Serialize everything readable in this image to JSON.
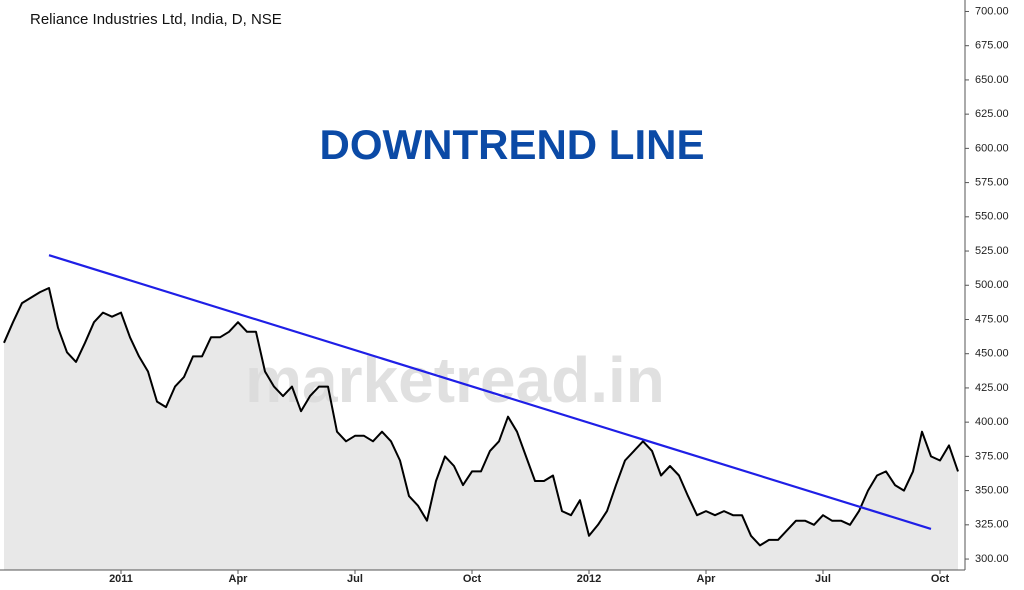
{
  "chart_data": {
    "type": "line",
    "title": "Reliance Industries Ltd, India, D, NSE",
    "annotation": "DOWNTREND LINE",
    "watermark": "marketread.in",
    "categories": [
      null,
      null,
      null,
      null,
      null,
      null,
      null,
      null,
      null,
      null,
      null,
      null,
      null,
      "2011",
      null,
      null,
      null,
      null,
      null,
      null,
      null,
      null,
      null,
      null,
      null,
      null,
      "Apr",
      null,
      null,
      null,
      null,
      null,
      null,
      null,
      null,
      null,
      null,
      null,
      null,
      "Jul",
      null,
      null,
      null,
      null,
      null,
      null,
      null,
      null,
      null,
      null,
      null,
      null,
      "Oct",
      null,
      null,
      null,
      null,
      null,
      null,
      null,
      null,
      null,
      null,
      null,
      null,
      "2012",
      null,
      null,
      null,
      null,
      null,
      null,
      null,
      null,
      null,
      null,
      null,
      null,
      "Apr",
      null,
      null,
      null,
      null,
      null,
      null,
      null,
      null,
      null,
      null,
      null,
      null,
      "Jul",
      null,
      null,
      null,
      null,
      null,
      null,
      null,
      null,
      null,
      null,
      null,
      null,
      "Oct",
      null,
      null
    ],
    "series": [
      {
        "color": "#000000",
        "values": [
          458,
          473,
          487,
          491,
          495,
          498,
          469,
          451,
          444,
          458,
          473,
          480,
          477,
          480,
          462,
          448,
          437,
          415,
          411,
          426,
          433,
          448,
          448,
          462,
          462,
          466,
          473,
          466,
          466,
          437,
          426,
          419,
          426,
          408,
          419,
          426,
          426,
          393,
          386,
          390,
          390,
          386,
          393,
          386,
          372,
          346,
          339,
          328,
          357,
          375,
          368,
          354,
          364,
          364,
          379,
          386,
          404,
          393,
          375,
          357,
          357,
          361,
          335,
          332,
          343,
          317,
          325,
          335,
          354,
          372,
          379,
          386,
          379,
          361,
          368,
          361,
          346,
          332,
          335,
          332,
          335,
          332,
          332,
          317,
          310,
          314,
          314,
          321,
          328,
          328,
          325,
          332,
          328,
          328,
          325,
          335,
          350,
          361,
          364,
          354,
          350,
          364,
          393,
          375,
          372,
          383,
          364
        ]
      }
    ],
    "area_color": "#e8e8e8",
    "trend_line": {
      "color": "#1f1fe6",
      "x": [
        5,
        103
      ],
      "values": [
        522,
        322
      ]
    },
    "ylim": [
      292,
      704
    ],
    "yticks": [
      {
        "value": 300,
        "label": "300.00"
      },
      {
        "value": 325,
        "label": "325.00"
      },
      {
        "value": 350,
        "label": "350.00"
      },
      {
        "value": 375,
        "label": "375.00"
      },
      {
        "value": 400,
        "label": "400.00"
      },
      {
        "value": 425,
        "label": "425.00"
      },
      {
        "value": 450,
        "label": "450.00"
      },
      {
        "value": 475,
        "label": "475.00"
      },
      {
        "value": 500,
        "label": "500.00"
      },
      {
        "value": 525,
        "label": "525.00"
      },
      {
        "value": 550,
        "label": "550.00"
      },
      {
        "value": 575,
        "label": "575.00"
      },
      {
        "value": 600,
        "label": "600.00"
      },
      {
        "value": 625,
        "label": "625.00"
      },
      {
        "value": 650,
        "label": "650.00"
      },
      {
        "value": 675,
        "label": "675.00"
      },
      {
        "value": 700,
        "label": "700.00"
      }
    ],
    "grid": false
  }
}
